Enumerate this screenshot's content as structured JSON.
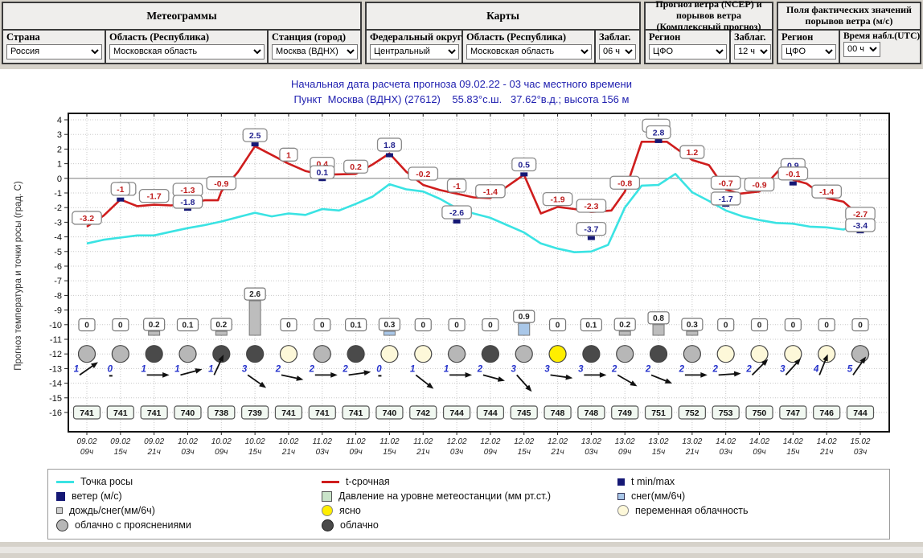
{
  "header": {
    "panels": [
      {
        "title": "Метеограммы",
        "controls": [
          {
            "label": "Страна",
            "value": "Россия"
          },
          {
            "label": "Область (Республика)",
            "value": "Московская область"
          },
          {
            "label": "Станция (город)",
            "value": "Москва (ВДНХ)"
          }
        ]
      },
      {
        "title": "Карты",
        "controls": [
          {
            "label": "Федеральный округ",
            "value": "Центральный"
          },
          {
            "label": "Область (Республика)",
            "value": "Московская область"
          },
          {
            "label": "Заблаг.",
            "value": "06 ч"
          }
        ]
      },
      {
        "title": "Прогноз ветра (NCEP) и порывов ветра (Комплексный прогноз)",
        "controls": [
          {
            "label": "Регион",
            "value": "ЦФО"
          },
          {
            "label": "Заблаг.",
            "value": "12 ч"
          }
        ]
      },
      {
        "title": "Поля фактических значений порывов ветра (м/с)",
        "controls": [
          {
            "label": "Регион",
            "value": "ЦФО"
          },
          {
            "label": "Время набл.(UTC)",
            "value": "00 ч"
          }
        ]
      }
    ]
  },
  "chart_data": {
    "type": "line",
    "title_line1": "Начальная дата расчета прогноза 09.02.22  -  03 час местного времени",
    "title_line2": "Пункт  Москва (ВДНХ) (27612)    55.83°с.ш.   37.62°в.д.; высота 156 м",
    "ylabel": "Прогноз температура и точки росы (град. С)",
    "ylim": [
      -16,
      4
    ],
    "grid": true,
    "x_labels": [
      [
        "09.02",
        "09ч"
      ],
      [
        "09.02",
        "15ч"
      ],
      [
        "09.02",
        "21ч"
      ],
      [
        "10.02",
        "03ч"
      ],
      [
        "10.02",
        "09ч"
      ],
      [
        "10.02",
        "15ч"
      ],
      [
        "10.02",
        "21ч"
      ],
      [
        "11.02",
        "03ч"
      ],
      [
        "11.02",
        "09ч"
      ],
      [
        "11.02",
        "15ч"
      ],
      [
        "11.02",
        "21ч"
      ],
      [
        "12.02",
        "03ч"
      ],
      [
        "12.02",
        "09ч"
      ],
      [
        "12.02",
        "15ч"
      ],
      [
        "12.02",
        "21ч"
      ],
      [
        "13.02",
        "03ч"
      ],
      [
        "13.02",
        "09ч"
      ],
      [
        "13.02",
        "15ч"
      ],
      [
        "13.02",
        "21ч"
      ],
      [
        "14.02",
        "03ч"
      ],
      [
        "14.02",
        "09ч"
      ],
      [
        "14.02",
        "15ч"
      ],
      [
        "14.02",
        "21ч"
      ],
      [
        "15.02",
        "03ч"
      ]
    ],
    "series": [
      {
        "name": "Точка росы",
        "color": "#3ae3e3",
        "points": [
          [
            1,
            -4.45
          ],
          [
            1.5,
            -4.2
          ],
          [
            2,
            -4.05
          ],
          [
            2.5,
            -3.9
          ],
          [
            3,
            -3.9
          ],
          [
            3.5,
            -3.65
          ],
          [
            4,
            -3.4
          ],
          [
            4.5,
            -3.2
          ],
          [
            5,
            -2.95
          ],
          [
            5.5,
            -2.65
          ],
          [
            6,
            -2.35
          ],
          [
            6.5,
            -2.6
          ],
          [
            7,
            -2.4
          ],
          [
            7.5,
            -2.5
          ],
          [
            8,
            -2.1
          ],
          [
            8.5,
            -2.2
          ],
          [
            9,
            -1.75
          ],
          [
            9.5,
            -1.25
          ],
          [
            10,
            -0.4
          ],
          [
            10.5,
            -0.75
          ],
          [
            11,
            -0.9
          ],
          [
            11.5,
            -1.4
          ],
          [
            12,
            -2.05
          ],
          [
            12.5,
            -2.4
          ],
          [
            13,
            -2.7
          ],
          [
            13.5,
            -3.2
          ],
          [
            14,
            -3.7
          ],
          [
            14.5,
            -4.45
          ],
          [
            15,
            -4.8
          ],
          [
            15.5,
            -5.05
          ],
          [
            16,
            -5.0
          ],
          [
            16.5,
            -4.55
          ],
          [
            17,
            -2.0
          ],
          [
            17.5,
            -0.5
          ],
          [
            18,
            -0.45
          ],
          [
            18.5,
            0.3
          ],
          [
            19,
            -0.95
          ],
          [
            19.5,
            -1.55
          ],
          [
            20,
            -2.2
          ],
          [
            20.5,
            -2.6
          ],
          [
            21,
            -2.85
          ],
          [
            21.5,
            -3.05
          ],
          [
            22,
            -3.1
          ],
          [
            22.5,
            -3.3
          ],
          [
            23,
            -3.35
          ],
          [
            23.5,
            -3.5
          ],
          [
            24,
            -3.05
          ]
        ]
      },
      {
        "name": "t-срочная",
        "color": "#cf1d1d",
        "points": [
          [
            1,
            -3.3
          ],
          [
            1.5,
            -2.55
          ],
          [
            2,
            -1.45
          ],
          [
            2.5,
            -1.9
          ],
          [
            3,
            -1.8
          ],
          [
            3.5,
            -1.85
          ],
          [
            4,
            -1.75
          ],
          [
            4.5,
            -1.5
          ],
          [
            4.9,
            -1.5
          ],
          [
            5,
            -0.9
          ],
          [
            5.5,
            0.45
          ],
          [
            6,
            2.2
          ],
          [
            6.5,
            1.6
          ],
          [
            7,
            1.0
          ],
          [
            7.5,
            0.5
          ],
          [
            8,
            0.25
          ],
          [
            9,
            0.3
          ],
          [
            9.5,
            0.95
          ],
          [
            10,
            1.7
          ],
          [
            10.5,
            0.45
          ],
          [
            11,
            -0.45
          ],
          [
            11.5,
            -0.8
          ],
          [
            12,
            -1.05
          ],
          [
            12.5,
            -1.3
          ],
          [
            13,
            -1.35
          ],
          [
            13.5,
            -0.55
          ],
          [
            14,
            0.25
          ],
          [
            14.5,
            -2.4
          ],
          [
            15,
            -1.95
          ],
          [
            15.5,
            -2.1
          ],
          [
            16,
            -2.3
          ],
          [
            16.6,
            -2.2
          ],
          [
            17,
            -0.9
          ],
          [
            17.5,
            2.5
          ],
          [
            18.25,
            2.5
          ],
          [
            19,
            1.25
          ],
          [
            19.5,
            0.9
          ],
          [
            20,
            -0.75
          ],
          [
            20.4,
            -1.05
          ],
          [
            21,
            -0.9
          ],
          [
            21.6,
            0.6
          ],
          [
            22,
            -0.1
          ],
          [
            22.4,
            -0.35
          ],
          [
            23,
            -1.35
          ],
          [
            23.5,
            -1.6
          ],
          [
            24,
            -2.6
          ]
        ]
      }
    ],
    "temp_labels": [
      {
        "col": 1,
        "text": "-3.2",
        "color": "red",
        "anchor": -2.7
      },
      {
        "col": 2,
        "text": "-1",
        "color": "red",
        "anchor": -0.72
      },
      {
        "col": 3,
        "text": "-1.7",
        "color": "red",
        "anchor": -1.2
      },
      {
        "col": 4,
        "text": "-1.3",
        "color": "red",
        "anchor": -0.78
      },
      {
        "col": 4,
        "text": "-1.8",
        "color": "navy",
        "anchor": -1.6
      },
      {
        "col": 5,
        "text": "-0.9",
        "color": "red",
        "anchor": -0.33
      },
      {
        "col": 6,
        "text": "2.5",
        "color": "navy",
        "anchor": 2.95
      },
      {
        "col": 7,
        "text": "1",
        "color": "red",
        "anchor": 1.62
      },
      {
        "col": 8,
        "text": "0.4",
        "color": "red",
        "anchor": 1.0
      },
      {
        "col": 8,
        "text": "0.1",
        "color": "navy",
        "anchor": 0.42
      },
      {
        "col": 9,
        "text": "0.2",
        "color": "red",
        "anchor": 0.8
      },
      {
        "col": 10,
        "text": "1.8",
        "color": "navy",
        "anchor": 2.3
      },
      {
        "col": 11,
        "text": "-0.2",
        "color": "red",
        "anchor": 0.32
      },
      {
        "col": 12,
        "text": "-1",
        "color": "red",
        "anchor": -0.5
      },
      {
        "col": 12,
        "text": "-2.6",
        "color": "navy",
        "anchor": -2.32
      },
      {
        "col": 13,
        "text": "-1.4",
        "color": "red",
        "anchor": -0.88
      },
      {
        "col": 14,
        "text": "0.5",
        "color": "navy",
        "anchor": 0.95
      },
      {
        "col": 15,
        "text": "-1.9",
        "color": "red",
        "anchor": -1.42
      },
      {
        "col": 16,
        "text": "-2.3",
        "color": "red",
        "anchor": -1.88
      },
      {
        "col": 16,
        "text": "-3.7",
        "color": "navy",
        "anchor": -3.45
      },
      {
        "col": 17,
        "text": "-0.8",
        "color": "red",
        "anchor": -0.3
      },
      {
        "col": 18,
        "text": "2.8",
        "color": "navy",
        "anchor": 3.15
      },
      {
        "col": 19,
        "text": "1.2",
        "color": "red",
        "anchor": 1.8
      },
      {
        "col": 20,
        "text": "-0.7",
        "color": "red",
        "anchor": -0.3
      },
      {
        "col": 20,
        "text": "-1.7",
        "color": "navy",
        "anchor": -1.38
      },
      {
        "col": 21,
        "text": "-0.9",
        "color": "red",
        "anchor": -0.42
      },
      {
        "col": 22,
        "text": "0.9",
        "color": "navy",
        "anchor": 0.9
      },
      {
        "col": 22,
        "text": "-0.1",
        "color": "red",
        "anchor": 0.33
      },
      {
        "col": 23,
        "text": "-1.4",
        "color": "red",
        "anchor": -0.9
      },
      {
        "col": 24,
        "text": "-2.7",
        "color": "red",
        "anchor": -2.42
      },
      {
        "col": 24,
        "text": "-3.4",
        "color": "navy",
        "anchor": -3.2
      }
    ],
    "ghost_boxes": [
      {
        "col": 2,
        "dx": 6,
        "anchor": -0.72,
        "w": 26
      },
      {
        "col": 18,
        "dx": -3,
        "anchor": 3.6,
        "w": 34
      }
    ],
    "minmax_markers": [
      [
        2,
        -1.45
      ],
      [
        4,
        -2.08
      ],
      [
        6,
        2.32
      ],
      [
        8,
        -0.05
      ],
      [
        10,
        1.58
      ],
      [
        12,
        -2.95
      ],
      [
        14,
        0.27
      ],
      [
        16,
        -4.08
      ],
      [
        18,
        2.55
      ],
      [
        20,
        -1.8
      ],
      [
        22,
        -0.35
      ],
      [
        24,
        -3.62
      ]
    ],
    "precipitation": {
      "text": [
        "0",
        "0",
        "0.2",
        "0.1",
        "0.2",
        "2.6",
        "0",
        "0",
        "0.1",
        "0.3",
        "0",
        "0",
        "0",
        "0.9",
        "0",
        "0.1",
        "0.2",
        "0.8",
        "0.3",
        "0",
        "0",
        "0",
        "0",
        "0"
      ],
      "values": [
        0,
        0,
        0.2,
        0.1,
        0.2,
        2.6,
        0,
        0,
        0.1,
        0.3,
        0,
        0,
        0,
        0.9,
        0,
        0.1,
        0.2,
        0.8,
        0.3,
        0,
        0,
        0,
        0,
        0
      ],
      "bar_type": [
        null,
        null,
        "rain",
        null,
        "rain",
        "rain",
        null,
        null,
        null,
        "snow",
        null,
        null,
        null,
        "snow",
        null,
        null,
        "rain",
        "rain",
        "rain",
        null,
        null,
        null,
        null,
        null
      ]
    },
    "clouds": [
      "gray",
      "gray",
      "dark",
      "gray",
      "dark",
      "dark",
      "cream",
      "gray",
      "dark",
      "cream",
      "cream",
      "gray",
      "dark",
      "gray",
      "yellow",
      "dark",
      "gray",
      "dark",
      "gray",
      "cream",
      "cream",
      "cream",
      "cream",
      "gray"
    ],
    "wind": {
      "speed": [
        1,
        0,
        1,
        1,
        1,
        3,
        2,
        2,
        2,
        0,
        1,
        1,
        2,
        3,
        3,
        3,
        2,
        2,
        2,
        2,
        2,
        3,
        4,
        5
      ],
      "angle": [
        35,
        null,
        0,
        15,
        65,
        -35,
        -12,
        0,
        8,
        null,
        -38,
        0,
        -15,
        -48,
        -8,
        0,
        -30,
        -22,
        0,
        4,
        45,
        48,
        68,
        55
      ]
    },
    "pressure": [
      741,
      741,
      741,
      740,
      738,
      739,
      741,
      741,
      741,
      740,
      742,
      744,
      744,
      745,
      748,
      748,
      749,
      751,
      752,
      753,
      750,
      747,
      746,
      744
    ],
    "colors": {
      "title": "#2121b0",
      "t_line": "#cf1d1d",
      "dewpoint_line": "#3ae3e3",
      "minmax": "#151875",
      "snow_bar": "#a9c7e8",
      "rain_bar": "#bdbdbd",
      "pressure_box": "#f1f8f1",
      "cloud_gray": "#b7b7b7",
      "cloud_dark": "#4a4a4a",
      "cloud_cream": "#fdf8d9",
      "cloud_yellow": "#ffee00"
    }
  },
  "legend": {
    "columns": [
      [
        {
          "swatch": "line-cyan",
          "label": "Точка росы"
        },
        {
          "swatch": "sq-navy",
          "label": "ветер (м/с)"
        },
        {
          "swatch": "sq-gray-sm",
          "label": "дождь/снег(мм/6ч)"
        },
        {
          "swatch": "ci-gray",
          "label": "облачно с прояснениями"
        }
      ],
      [
        {
          "swatch": "line-red",
          "label": "t-срочная"
        },
        {
          "swatch": "sq-green",
          "label": "Давление на уровне метеостанции (мм рт.ст.)"
        },
        {
          "swatch": "ci-yellow",
          "label": "ясно"
        },
        {
          "swatch": "ci-dark",
          "label": "облачно"
        }
      ],
      [
        {
          "swatch": "sq-navy-sm",
          "label": "t min/max"
        },
        {
          "swatch": "sq-blue",
          "label": "снег(мм/6ч)"
        },
        {
          "swatch": "ci-cream",
          "label": "переменная облачность"
        }
      ]
    ]
  }
}
